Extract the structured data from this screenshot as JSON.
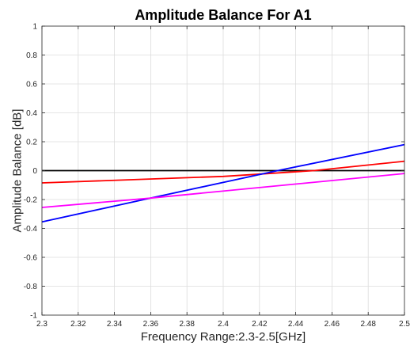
{
  "chart_data": {
    "type": "line",
    "title": "Amplitude Balance For A1",
    "xlabel": "Frequency Range:2.3-2.5[GHz]",
    "ylabel": "Amplitude Balance [dB]",
    "xlim": [
      2.3,
      2.5
    ],
    "ylim": [
      -1,
      1
    ],
    "grid": true,
    "xticks": [
      2.3,
      2.32,
      2.34,
      2.36,
      2.38,
      2.4,
      2.42,
      2.44,
      2.46,
      2.48,
      2.5
    ],
    "yticks": [
      -1,
      -0.8,
      -0.6,
      -0.4,
      -0.2,
      0,
      0.2,
      0.4,
      0.6,
      0.8,
      1
    ],
    "xtick_labels": [
      "2.3",
      "2.32",
      "2.34",
      "2.36",
      "2.38",
      "2.4",
      "2.42",
      "2.44",
      "2.46",
      "2.48",
      "2.5"
    ],
    "ytick_labels": [
      "-1",
      "-0.8",
      "-0.6",
      "-0.4",
      "-0.2",
      "0",
      "0.2",
      "0.4",
      "0.6",
      "0.8",
      "1"
    ],
    "series": [
      {
        "color": "#000000",
        "x": [
          2.3,
          2.5
        ],
        "y": [
          0,
          0
        ]
      },
      {
        "color": "#ff0000",
        "x": [
          2.3,
          2.4,
          2.45,
          2.5
        ],
        "y": [
          -0.085,
          -0.04,
          0,
          0.065
        ]
      },
      {
        "color": "#0000ff",
        "x": [
          2.3,
          2.36,
          2.43,
          2.5
        ],
        "y": [
          -0.355,
          -0.19,
          0,
          0.18
        ]
      },
      {
        "color": "#ff00ff",
        "x": [
          2.3,
          2.36,
          2.5
        ],
        "y": [
          -0.255,
          -0.19,
          -0.02
        ]
      }
    ]
  }
}
